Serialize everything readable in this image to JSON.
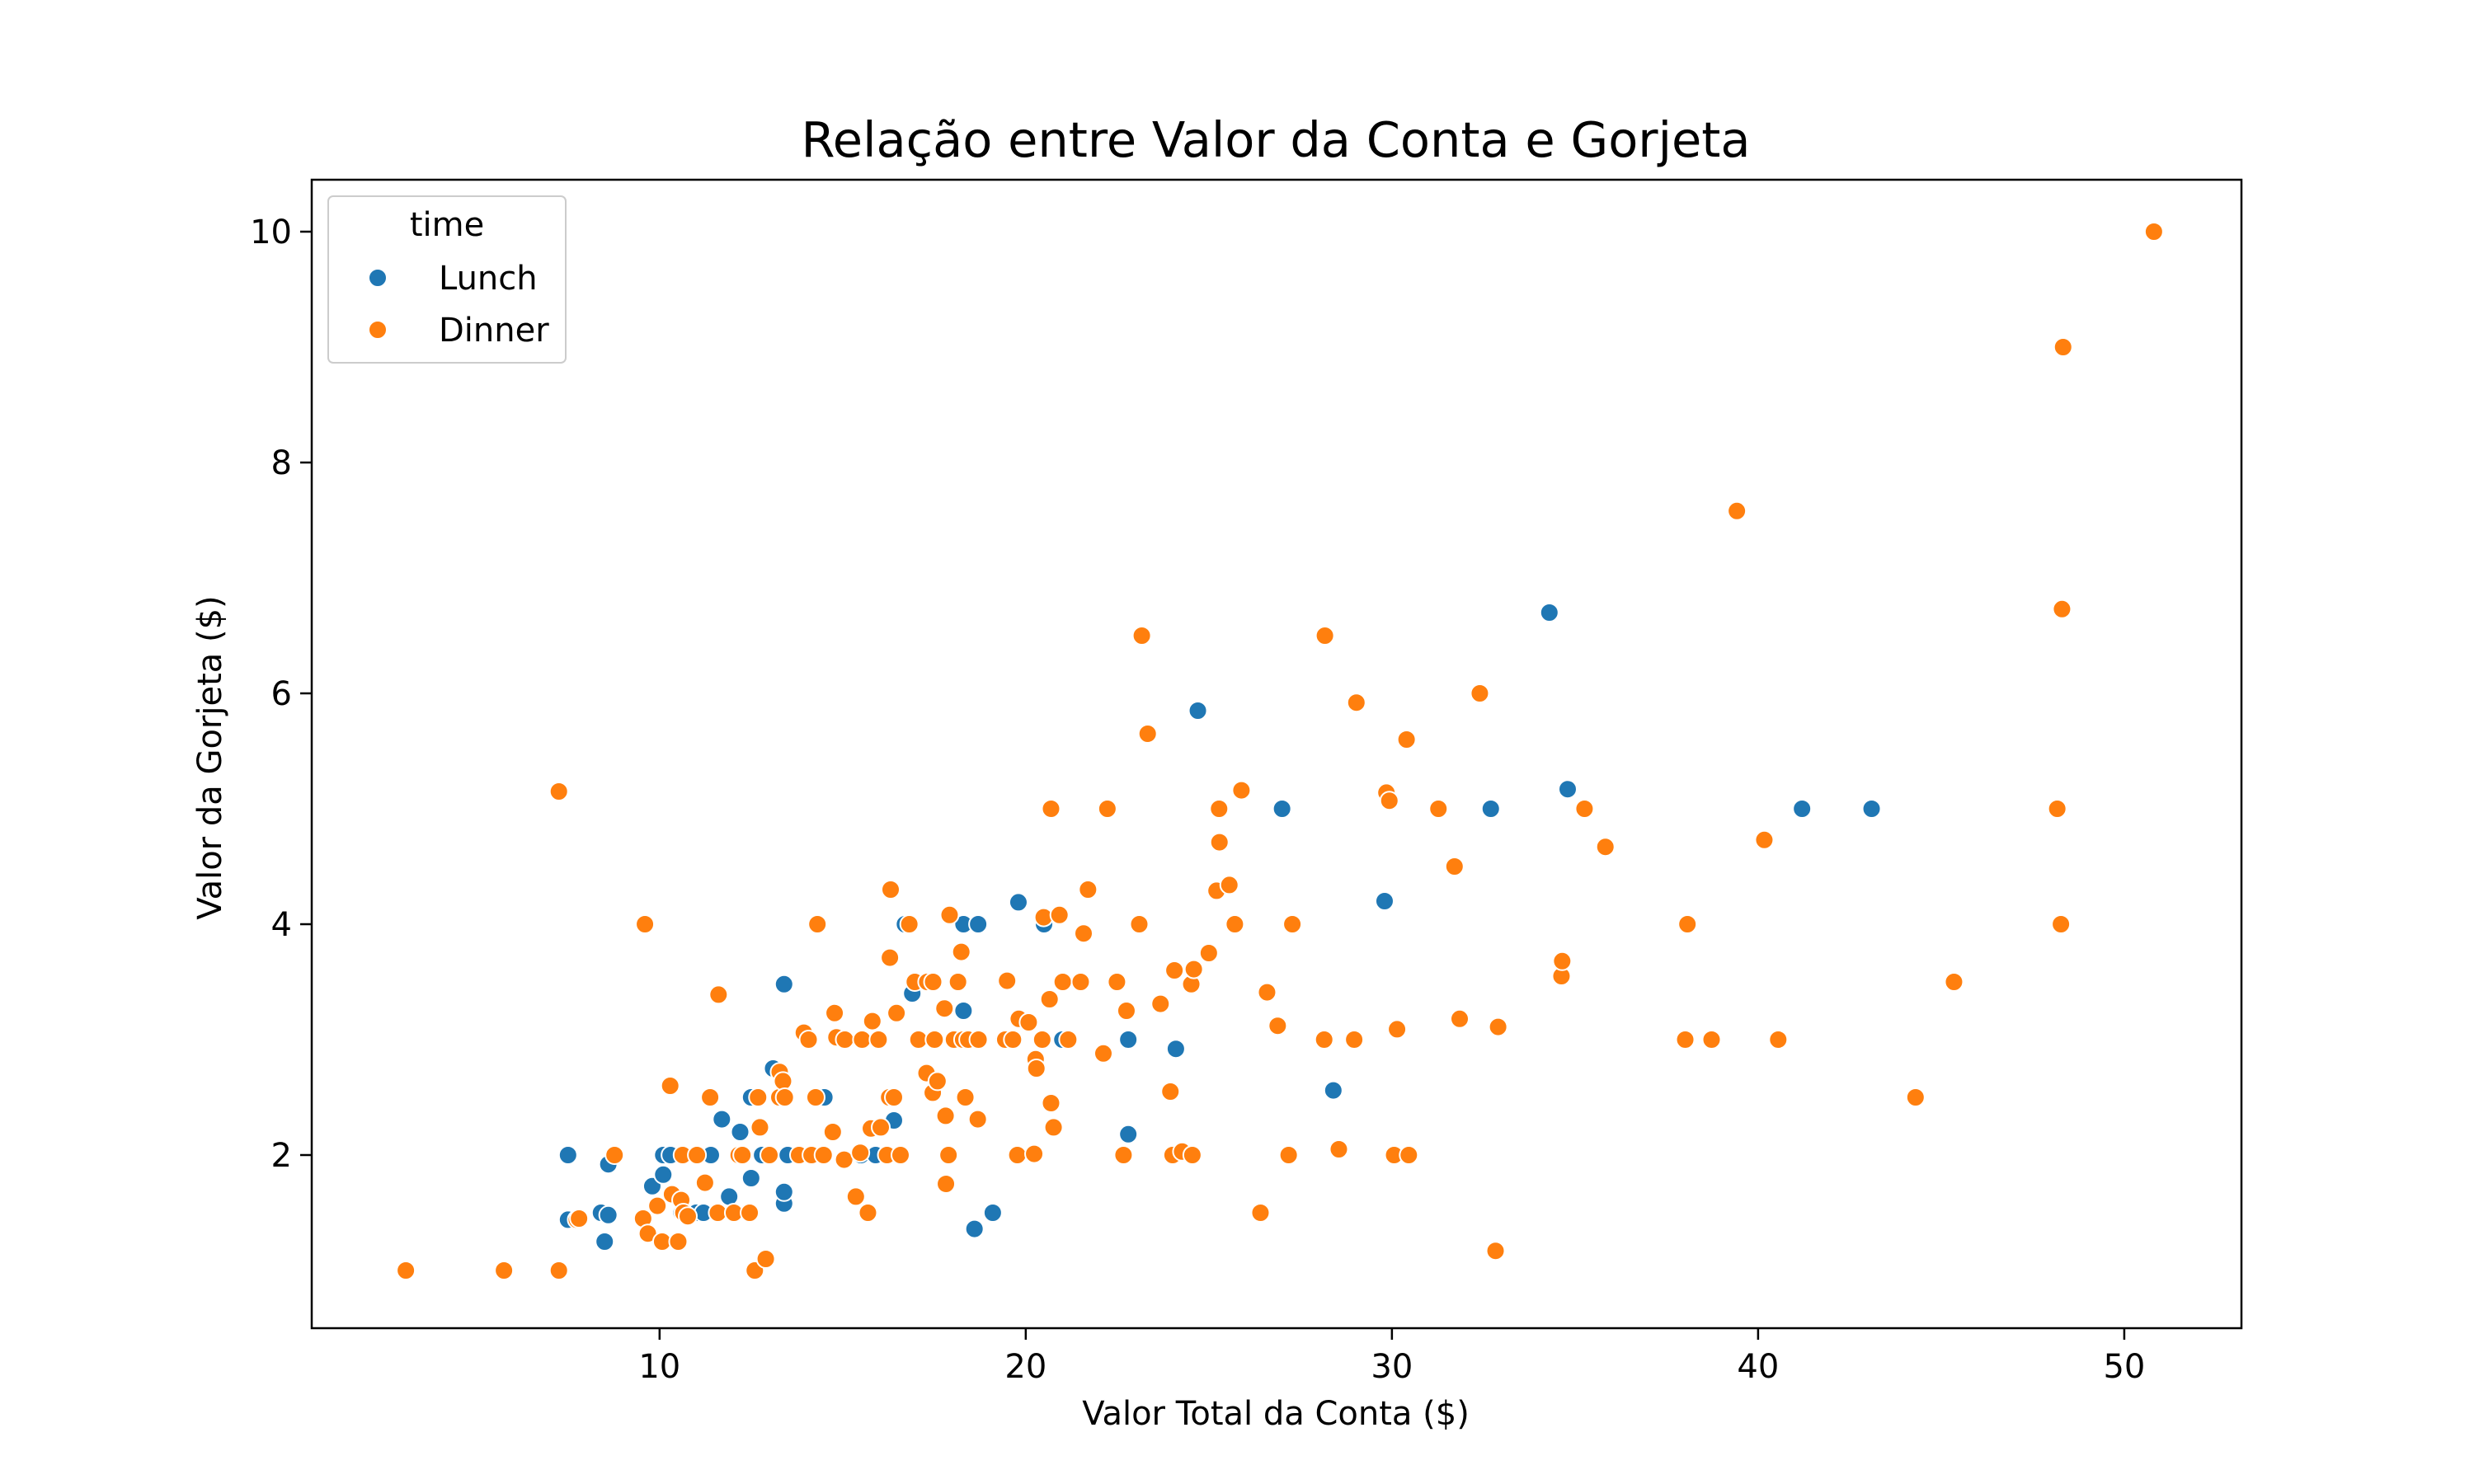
{
  "chart_data": {
    "type": "scatter",
    "title": "Relação entre Valor da Conta e Gorjeta",
    "xlabel": "Valor Total da Conta ($)",
    "ylabel": "Valor da Gorjeta ($)",
    "xlim": [
      0.5,
      53.2
    ],
    "ylim": [
      0.5,
      10.45
    ],
    "xticks": [
      10,
      20,
      30,
      40,
      50
    ],
    "yticks": [
      2,
      4,
      6,
      8,
      10
    ],
    "grid": false,
    "legend": {
      "title": "time",
      "placement": "top-left"
    },
    "colors": {
      "Lunch": "#1f77b4",
      "Dinner": "#ff7f0e"
    },
    "series": [
      {
        "name": "Lunch",
        "points": [
          [
            7.5,
            2.0
          ],
          [
            7.5,
            1.44
          ],
          [
            8.4,
            1.5
          ],
          [
            8.5,
            1.25
          ],
          [
            8.6,
            1.48
          ],
          [
            8.6,
            1.92
          ],
          [
            9.8,
            1.73
          ],
          [
            10.1,
            2.0
          ],
          [
            10.1,
            1.83
          ],
          [
            10.3,
            2.0
          ],
          [
            10.6,
            1.5
          ],
          [
            11.0,
            1.5
          ],
          [
            11.2,
            1.5
          ],
          [
            11.4,
            2.0
          ],
          [
            11.7,
            2.31
          ],
          [
            11.9,
            1.64
          ],
          [
            12.2,
            2.2
          ],
          [
            12.3,
            2.0
          ],
          [
            12.5,
            1.8
          ],
          [
            12.5,
            2.5
          ],
          [
            12.8,
            2.0
          ],
          [
            13.0,
            2.0
          ],
          [
            13.1,
            2.75
          ],
          [
            13.4,
            3.48
          ],
          [
            13.4,
            1.58
          ],
          [
            13.4,
            1.68
          ],
          [
            13.5,
            2.0
          ],
          [
            14.5,
            2.5
          ],
          [
            15.5,
            2.0
          ],
          [
            15.9,
            2.0
          ],
          [
            16.0,
            3.0
          ],
          [
            16.3,
            2.5
          ],
          [
            16.4,
            2.3
          ],
          [
            16.5,
            3.23
          ],
          [
            16.7,
            4.0
          ],
          [
            16.9,
            3.4
          ],
          [
            17.5,
            3.5
          ],
          [
            17.6,
            2.64
          ],
          [
            18.3,
            4.0
          ],
          [
            18.3,
            3.25
          ],
          [
            18.6,
            1.36
          ],
          [
            18.7,
            4.0
          ],
          [
            19.1,
            1.5
          ],
          [
            19.4,
            3.0
          ],
          [
            19.8,
            4.19
          ],
          [
            20.3,
            2.83
          ],
          [
            20.5,
            4.0
          ],
          [
            21.0,
            3.0
          ],
          [
            22.8,
            3.0
          ],
          [
            22.8,
            2.18
          ],
          [
            24.1,
            2.92
          ],
          [
            24.7,
            5.85
          ],
          [
            27.0,
            5.0
          ],
          [
            28.4,
            2.56
          ],
          [
            29.8,
            4.2
          ],
          [
            32.7,
            5.0
          ],
          [
            34.3,
            6.7
          ],
          [
            34.8,
            5.17
          ],
          [
            41.2,
            5.0
          ],
          [
            43.1,
            5.0
          ]
        ]
      },
      {
        "name": "Dinner",
        "points": [
          [
            3.07,
            1.0
          ],
          [
            5.75,
            1.0
          ],
          [
            7.25,
            1.0
          ],
          [
            7.25,
            5.15
          ],
          [
            7.74,
            1.44
          ],
          [
            7.8,
            1.45
          ],
          [
            8.77,
            2.0
          ],
          [
            9.55,
            1.45
          ],
          [
            9.6,
            4.0
          ],
          [
            9.68,
            1.32
          ],
          [
            9.94,
            1.56
          ],
          [
            10.07,
            1.25
          ],
          [
            10.29,
            2.6
          ],
          [
            10.33,
            1.67
          ],
          [
            10.34,
            1.66
          ],
          [
            10.51,
            1.25
          ],
          [
            10.59,
            1.61
          ],
          [
            10.63,
            2.0
          ],
          [
            10.65,
            1.5
          ],
          [
            10.77,
            1.47
          ],
          [
            11.02,
            2.0
          ],
          [
            11.24,
            1.76
          ],
          [
            11.38,
            2.5
          ],
          [
            11.59,
            1.5
          ],
          [
            11.61,
            3.39
          ],
          [
            12.03,
            1.5
          ],
          [
            12.16,
            2.0
          ],
          [
            12.26,
            2.0
          ],
          [
            12.46,
            1.5
          ],
          [
            12.6,
            1.0
          ],
          [
            12.69,
            2.5
          ],
          [
            12.74,
            2.24
          ],
          [
            12.9,
            1.1
          ],
          [
            13.0,
            2.0
          ],
          [
            13.27,
            2.5
          ],
          [
            13.28,
            2.72
          ],
          [
            13.37,
            2.64
          ],
          [
            13.42,
            2.5
          ],
          [
            13.81,
            2.0
          ],
          [
            13.94,
            3.06
          ],
          [
            14.07,
            3.0
          ],
          [
            14.15,
            2.0
          ],
          [
            14.26,
            2.5
          ],
          [
            14.31,
            4.0
          ],
          [
            14.48,
            2.0
          ],
          [
            14.73,
            2.2
          ],
          [
            14.78,
            3.23
          ],
          [
            14.83,
            3.02
          ],
          [
            15.04,
            1.96
          ],
          [
            15.06,
            3.0
          ],
          [
            15.36,
            1.64
          ],
          [
            15.48,
            2.02
          ],
          [
            15.53,
            3.0
          ],
          [
            15.69,
            1.5
          ],
          [
            15.77,
            2.23
          ],
          [
            15.81,
            3.16
          ],
          [
            15.98,
            3.0
          ],
          [
            16.04,
            2.24
          ],
          [
            16.21,
            2.0
          ],
          [
            16.27,
            2.5
          ],
          [
            16.29,
            3.71
          ],
          [
            16.31,
            4.3
          ],
          [
            16.4,
            2.5
          ],
          [
            16.47,
            3.23
          ],
          [
            16.58,
            2.0
          ],
          [
            16.82,
            4.0
          ],
          [
            16.97,
            3.5
          ],
          [
            17.07,
            3.0
          ],
          [
            17.29,
            2.71
          ],
          [
            17.31,
            3.5
          ],
          [
            17.46,
            2.54
          ],
          [
            17.47,
            3.5
          ],
          [
            17.51,
            3.0
          ],
          [
            17.59,
            2.64
          ],
          [
            17.78,
            3.27
          ],
          [
            17.81,
            2.34
          ],
          [
            17.82,
            1.75
          ],
          [
            17.89,
            2.0
          ],
          [
            17.92,
            4.08
          ],
          [
            18.04,
            3.0
          ],
          [
            18.15,
            3.5
          ],
          [
            18.24,
            3.76
          ],
          [
            18.29,
            3.0
          ],
          [
            18.35,
            2.5
          ],
          [
            18.43,
            3.0
          ],
          [
            18.69,
            2.31
          ],
          [
            18.71,
            3.0
          ],
          [
            19.44,
            3.0
          ],
          [
            19.49,
            3.51
          ],
          [
            19.65,
            3.0
          ],
          [
            19.77,
            2.0
          ],
          [
            19.81,
            3.18
          ],
          [
            20.08,
            3.15
          ],
          [
            20.23,
            2.01
          ],
          [
            20.27,
            2.83
          ],
          [
            20.29,
            2.75
          ],
          [
            20.45,
            3.0
          ],
          [
            20.49,
            4.06
          ],
          [
            20.65,
            3.35
          ],
          [
            20.69,
            5.0
          ],
          [
            20.76,
            2.24
          ],
          [
            20.69,
            2.45
          ],
          [
            20.92,
            4.08
          ],
          [
            21.01,
            3.5
          ],
          [
            21.16,
            3.0
          ],
          [
            21.5,
            3.5
          ],
          [
            21.58,
            3.92
          ],
          [
            21.7,
            4.3
          ],
          [
            22.12,
            2.88
          ],
          [
            22.23,
            5.0
          ],
          [
            22.49,
            3.5
          ],
          [
            22.67,
            2.0
          ],
          [
            22.75,
            3.25
          ],
          [
            23.1,
            4.0
          ],
          [
            23.17,
            6.5
          ],
          [
            23.33,
            5.65
          ],
          [
            23.68,
            3.31
          ],
          [
            23.95,
            2.55
          ],
          [
            24.01,
            2.0
          ],
          [
            24.06,
            3.6
          ],
          [
            24.27,
            2.03
          ],
          [
            24.52,
            3.48
          ],
          [
            24.55,
            2.0
          ],
          [
            24.59,
            3.61
          ],
          [
            25.0,
            3.75
          ],
          [
            25.21,
            4.29
          ],
          [
            25.28,
            5.0
          ],
          [
            25.29,
            4.71
          ],
          [
            25.56,
            4.34
          ],
          [
            25.71,
            4.0
          ],
          [
            25.89,
            5.16
          ],
          [
            26.41,
            1.5
          ],
          [
            26.59,
            3.41
          ],
          [
            26.88,
            3.12
          ],
          [
            27.18,
            2.0
          ],
          [
            27.28,
            4.0
          ],
          [
            28.15,
            3.0
          ],
          [
            28.17,
            6.5
          ],
          [
            28.55,
            2.05
          ],
          [
            28.97,
            3.0
          ],
          [
            29.03,
            5.92
          ],
          [
            29.85,
            5.14
          ],
          [
            29.93,
            5.07
          ],
          [
            30.06,
            2.0
          ],
          [
            30.14,
            3.09
          ],
          [
            30.4,
            5.6
          ],
          [
            30.46,
            2.0
          ],
          [
            31.27,
            5.0
          ],
          [
            31.71,
            4.5
          ],
          [
            31.85,
            3.18
          ],
          [
            32.4,
            6.0
          ],
          [
            32.83,
            1.17
          ],
          [
            32.9,
            3.11
          ],
          [
            34.63,
            3.55
          ],
          [
            34.65,
            3.68
          ],
          [
            35.26,
            5.0
          ],
          [
            35.83,
            4.67
          ],
          [
            38.01,
            3.0
          ],
          [
            38.07,
            4.0
          ],
          [
            38.73,
            3.0
          ],
          [
            39.42,
            7.58
          ],
          [
            40.17,
            4.73
          ],
          [
            40.55,
            3.0
          ],
          [
            44.3,
            2.5
          ],
          [
            45.35,
            3.5
          ],
          [
            48.17,
            5.0
          ],
          [
            48.27,
            4.0
          ],
          [
            48.33,
            9.0
          ],
          [
            50.81,
            10.0
          ],
          [
            48.3,
            6.73
          ]
        ]
      }
    ]
  }
}
